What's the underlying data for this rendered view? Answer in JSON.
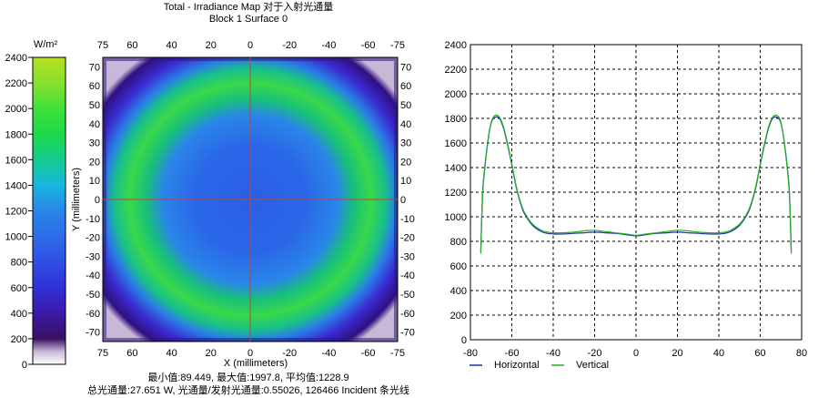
{
  "title": "Total - Irradiance Map 对于入射光通量",
  "subtitle": "Block 1 Surface 0",
  "footer": {
    "stats": "最小值:89.449, 最大值:1997.8, 平均值:1228.9",
    "totals": "总光通量:27.651 W, 光通量/发射光通量:0.55026, 126466 Incident 条光线"
  },
  "colorbar": {
    "unit": "W/m²",
    "ticks": [
      0,
      200,
      400,
      600,
      800,
      1000,
      1200,
      1400,
      1600,
      1800,
      2000,
      2200,
      2400
    ],
    "range": [
      0,
      2400
    ],
    "stops": [
      {
        "v": 0,
        "color": "#ffffff"
      },
      {
        "v": 100,
        "color": "#c8b8d8"
      },
      {
        "v": 200,
        "color": "#3a1060"
      },
      {
        "v": 400,
        "color": "#3a1aa8"
      },
      {
        "v": 600,
        "color": "#3030d8"
      },
      {
        "v": 900,
        "color": "#2f5ee8"
      },
      {
        "v": 1200,
        "color": "#2a86e8"
      },
      {
        "v": 1400,
        "color": "#17b6e0"
      },
      {
        "v": 1600,
        "color": "#12cc90"
      },
      {
        "v": 1800,
        "color": "#1ed84a"
      },
      {
        "v": 2000,
        "color": "#40e03a"
      },
      {
        "v": 2200,
        "color": "#88e030"
      },
      {
        "v": 2400,
        "color": "#b8e020"
      }
    ]
  },
  "chart_data": [
    {
      "type": "heatmap",
      "title": "Total - Irradiance Map 对于入射光通量",
      "subtitle": "Block 1 Surface 0",
      "xlabel": "X (millimeters)",
      "ylabel": "Y (millimeters)",
      "xlim": [
        75,
        -75
      ],
      "ylim": [
        -75,
        75
      ],
      "x_ticks_top": [
        75,
        60,
        40,
        20,
        0,
        -20,
        -40,
        -60,
        -75
      ],
      "x_ticks_bottom": [
        75,
        60,
        40,
        20,
        0,
        -20,
        -40,
        -60,
        -75
      ],
      "y_ticks": [
        70,
        60,
        50,
        40,
        30,
        20,
        10,
        0,
        -10,
        -20,
        -30,
        -40,
        -50,
        -60,
        -70
      ],
      "min": 89.449,
      "max": 1997.8,
      "mean": 1228.9,
      "unit": "W/m²",
      "crosshair": [
        0,
        0
      ]
    },
    {
      "type": "line",
      "xlim": [
        -80,
        80
      ],
      "ylim": [
        0,
        2400
      ],
      "x_ticks": [
        -80,
        -60,
        -40,
        -20,
        0,
        20,
        40,
        60,
        80
      ],
      "y_ticks": [
        0,
        200,
        400,
        600,
        800,
        1000,
        1200,
        1400,
        1600,
        1800,
        2000,
        2200,
        2400
      ],
      "grid": true,
      "legend_position": "bottom-left",
      "series": [
        {
          "name": "Horizontal",
          "color": "#1a2fa8",
          "x": [
            -75,
            -74,
            -72,
            -70,
            -68,
            -66,
            -64,
            -62,
            -60,
            -58,
            -56,
            -54,
            -50,
            -45,
            -40,
            -35,
            -30,
            -25,
            -20,
            -15,
            -10,
            -5,
            0,
            5,
            10,
            15,
            20,
            25,
            30,
            35,
            40,
            45,
            50,
            54,
            56,
            58,
            60,
            62,
            64,
            66,
            68,
            70,
            72,
            74,
            75
          ],
          "y": [
            720,
            1220,
            1560,
            1760,
            1810,
            1800,
            1720,
            1580,
            1420,
            1250,
            1120,
            1030,
            930,
            875,
            860,
            860,
            865,
            870,
            875,
            870,
            865,
            855,
            845,
            855,
            865,
            870,
            875,
            870,
            865,
            860,
            860,
            875,
            930,
            1030,
            1120,
            1250,
            1420,
            1580,
            1720,
            1800,
            1810,
            1760,
            1560,
            1220,
            720
          ]
        },
        {
          "name": "Vertical",
          "color": "#22b022",
          "x": [
            -75,
            -74,
            -72,
            -70,
            -68,
            -66,
            -64,
            -62,
            -60,
            -58,
            -56,
            -54,
            -50,
            -45,
            -40,
            -35,
            -30,
            -25,
            -20,
            -15,
            -10,
            -5,
            0,
            5,
            10,
            15,
            20,
            25,
            30,
            35,
            40,
            45,
            50,
            54,
            56,
            58,
            60,
            62,
            64,
            66,
            68,
            70,
            72,
            74,
            75
          ],
          "y": [
            700,
            1200,
            1550,
            1765,
            1825,
            1810,
            1730,
            1590,
            1430,
            1260,
            1130,
            1040,
            940,
            885,
            870,
            870,
            875,
            885,
            890,
            880,
            870,
            860,
            850,
            860,
            870,
            880,
            890,
            885,
            875,
            870,
            870,
            885,
            940,
            1040,
            1130,
            1260,
            1430,
            1590,
            1730,
            1810,
            1825,
            1765,
            1550,
            1200,
            700
          ]
        }
      ]
    }
  ]
}
